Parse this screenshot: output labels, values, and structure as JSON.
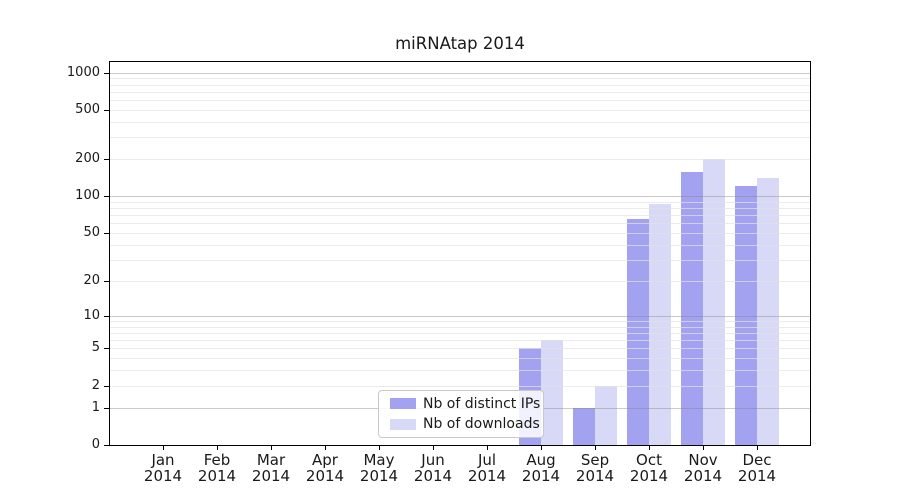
{
  "chart_data": {
    "type": "bar",
    "title": "miRNAtap 2014",
    "categories": [
      "Jan",
      "Feb",
      "Mar",
      "Apr",
      "May",
      "Jun",
      "Jul",
      "Aug",
      "Sep",
      "Oct",
      "Nov",
      "Dec"
    ],
    "x_tick_year": "2014",
    "series": [
      {
        "name": "Nb of distinct IPs",
        "color": "#a2a2f0",
        "values": [
          0,
          0,
          0,
          0,
          0,
          0,
          0,
          5,
          1,
          65,
          158,
          120
        ]
      },
      {
        "name": "Nb of downloads",
        "color": "#d8d8f7",
        "values": [
          0,
          0,
          0,
          0,
          0,
          0,
          0,
          6,
          2,
          87,
          200,
          140
        ]
      }
    ],
    "yticks": [
      0,
      1,
      2,
      5,
      10,
      20,
      50,
      100,
      200,
      500,
      1000
    ],
    "ylim": [
      0,
      1000
    ],
    "yscale": "log10(1+x)",
    "grid": "horizontal, major at powers of 10, faint minors, drawn over bars",
    "legend_position": "lower center-left inside plot",
    "colors": {
      "grid_major": "#c8c8c8",
      "grid_minor": "#ececec",
      "spine": "#000000",
      "background": "#ffffff"
    }
  }
}
